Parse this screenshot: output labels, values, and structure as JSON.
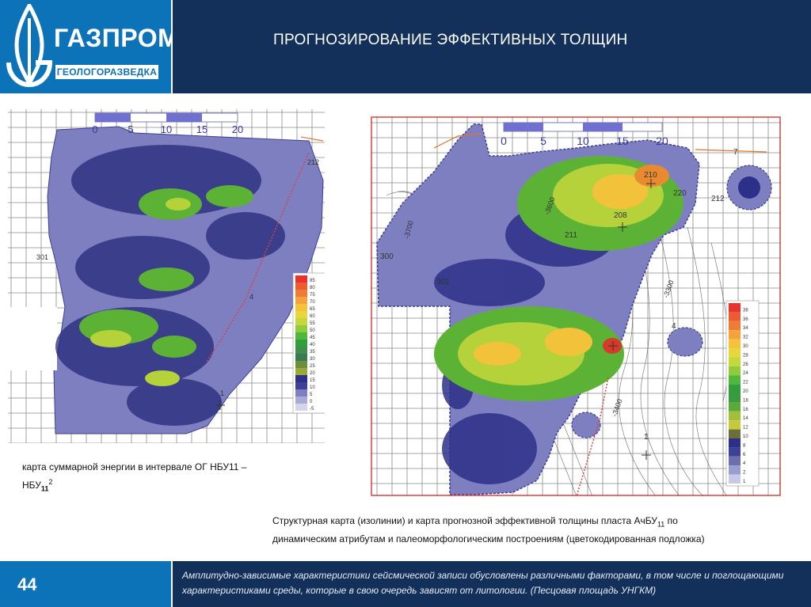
{
  "header": {
    "title": "ПРОГНОЗИРОВАНИЕ ЭФФЕКТИВНЫХ ТОЛЩИН",
    "brand": "ГАЗПРОМ",
    "brand_sub": "ГЕОЛОГОРАЗВЕДКА",
    "logo_color": "#0d73b8",
    "bar_color": "#13305a"
  },
  "map_left": {
    "scale_labels": [
      "0",
      "5",
      "10",
      "15",
      "20"
    ],
    "legend_labels": [
      "85",
      "80",
      "75",
      "70",
      "65",
      "60",
      "55",
      "50",
      "45",
      "40",
      "35",
      "30",
      "25",
      "20",
      "15",
      "10",
      "5",
      "0",
      "-5"
    ],
    "well_labels": [
      "212",
      "301",
      "4",
      "1"
    ],
    "caption": {
      "line1": "карта суммарной энергии в интервале ОГ НБУ11 –",
      "line2_main": "НБУ",
      "line2_sub": "11",
      "line2_sup": "2"
    }
  },
  "map_right": {
    "scale_labels": [
      "0",
      "5",
      "10",
      "15",
      "20"
    ],
    "legend_labels": [
      "38",
      "36",
      "34",
      "32",
      "30",
      "28",
      "26",
      "24",
      "22",
      "20",
      "18",
      "16",
      "14",
      "12",
      "10",
      "8",
      "6",
      "4",
      "2",
      "1"
    ],
    "well_labels": [
      "7",
      "210",
      "220",
      "212",
      "208",
      "211",
      "300",
      "301",
      "4",
      "1"
    ],
    "contour_labels": [
      "-3700",
      "-3600",
      "-3400",
      "-3300"
    ],
    "caption": {
      "line1_main": "Структурная карта (изолинии) и карта прогнозной эффективной толщины пласта АчБУ",
      "line1_sub": "11",
      "line1_end": " по",
      "line2": "динамическим атрибутам и палеоморфологическим построениям (цветокодированная подложка)"
    }
  },
  "footer": {
    "page_number": "44",
    "text": "Амплитудно-зависимые характеристики сейсмической записи обусловлены различными факторами, в том числе и поглощающими характеристиками среды, которые в свою очередь зависят от литологии. (Песцовая площадь  УНГКМ)"
  }
}
